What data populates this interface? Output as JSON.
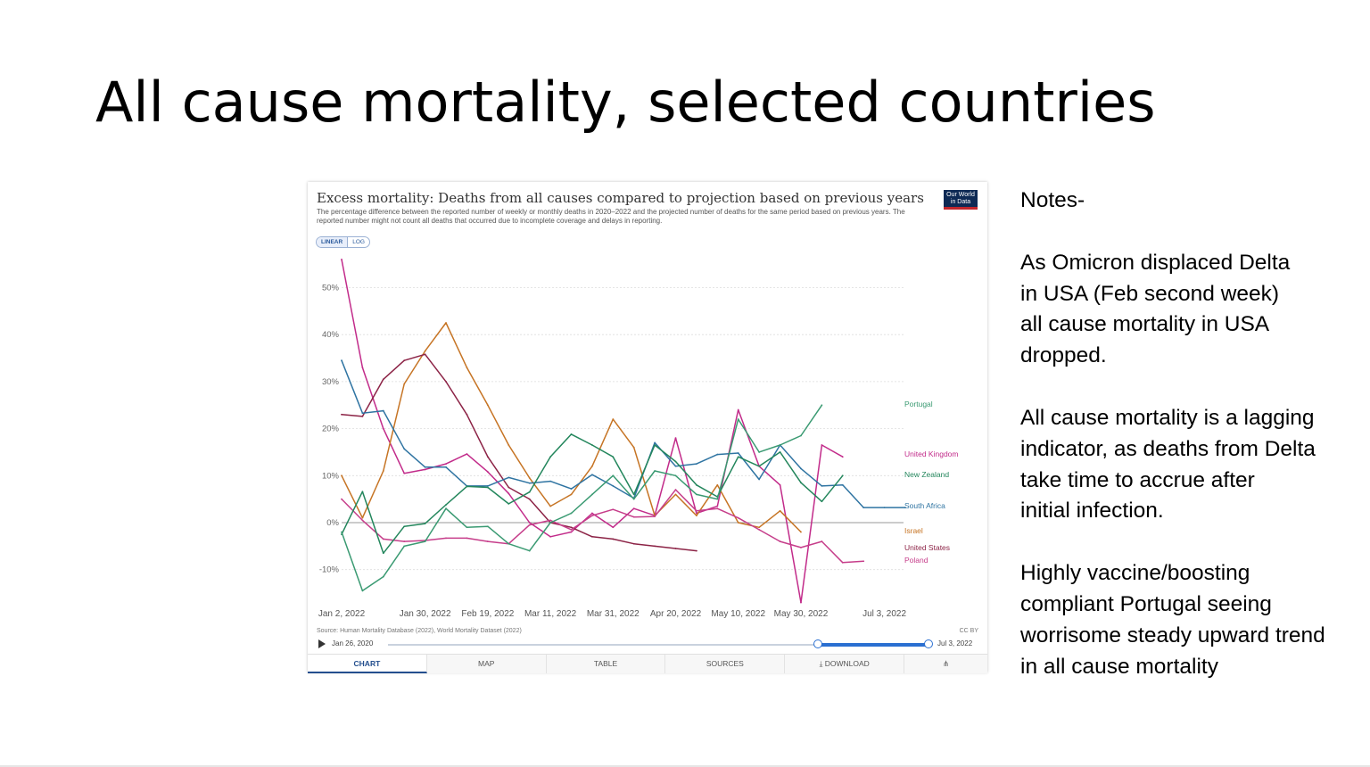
{
  "slide": {
    "title": "All cause mortality, selected countries"
  },
  "notes": {
    "heading": "Notes-",
    "paragraphs": [
      "As Omicron displaced Delta\nin USA (Feb second week)\nall cause mortality in USA\ndropped.",
      "All cause mortality is a lagging\nindicator, as deaths from Delta\ntake time to accrue after\ninitial infection.",
      "Highly vaccine/boosting\ncompliant Portugal seeing\nworrisome steady upward trend\nin all cause mortality"
    ]
  },
  "widget": {
    "logo_text": "Our World in Data",
    "scale_linear": "LINEAR",
    "scale_log": "LOG",
    "source": "Source: Human Mortality Database (2022), World Mortality Dataset (2022)",
    "license": "CC BY",
    "timeline_start": "Jan 26, 2020",
    "timeline_end": "Jul 3, 2022",
    "tabs": [
      "CHART",
      "MAP",
      "TABLE",
      "SOURCES",
      "DOWNLOAD",
      "⋔"
    ]
  },
  "chart_data": {
    "type": "line",
    "title": "Excess mortality: Deaths from all causes compared to projection based on previous years",
    "subtitle": "The percentage difference between the reported number of weekly or monthly deaths in 2020–2022 and the projected number of deaths for the same period based on previous years. The reported number might not count all deaths that occurred due to incomplete coverage and delays in reporting.",
    "xlabel": "",
    "ylabel": "",
    "ylim": [
      -15,
      55
    ],
    "yticks": [
      -10,
      0,
      10,
      20,
      30,
      40,
      50
    ],
    "ytick_labels": [
      "-10%",
      "0%",
      "10%",
      "20%",
      "30%",
      "40%",
      "50%"
    ],
    "grid": true,
    "x_count": 28,
    "x_tick_indices": [
      0,
      4,
      7,
      10,
      13,
      16,
      19,
      22,
      26
    ],
    "x_tick_labels": [
      "Jan 2, 2022",
      "Jan 30, 2022",
      "Feb 19, 2022",
      "Mar 11, 2022",
      "Mar 31, 2022",
      "Apr 20, 2022",
      "May 10, 2022",
      "May 30, 2022",
      "Jul 3, 2022"
    ],
    "legend_position": "right (end-of-line labels)",
    "series": [
      {
        "name": "United Kingdom",
        "color": "#c22b8a",
        "values": [
          56,
          33,
          20,
          10.5,
          11.3,
          12.5,
          14.6,
          10.8,
          6.2,
          0,
          -3,
          -2,
          2,
          -1,
          3,
          1.5,
          18,
          2,
          3.5,
          24,
          12,
          8,
          -17,
          16.5,
          14
        ]
      },
      {
        "name": "Israel",
        "color": "#c67424",
        "values": [
          10,
          1,
          11,
          29.5,
          36.5,
          42.5,
          33,
          25,
          16.5,
          9.5,
          3.5,
          6,
          12,
          22,
          16,
          1.5,
          6,
          1.5,
          8,
          0,
          -1,
          2.5,
          -2
        ]
      },
      {
        "name": "United States",
        "color": "#8c2346",
        "values": [
          23,
          22.6,
          30.5,
          34.5,
          35.8,
          30,
          23,
          14,
          7.5,
          5,
          0,
          -1,
          -3,
          -3.5,
          -4.5,
          -5,
          -5.5,
          -6
        ]
      },
      {
        "name": "Poland",
        "color": "#c63d8a",
        "values": [
          5,
          0.5,
          -3.5,
          -4,
          -3.8,
          -3.3,
          -3.3,
          -4,
          -4.5,
          -0.5,
          0.5,
          -1.5,
          1.5,
          2.8,
          1.2,
          1.3,
          7,
          2.5,
          3,
          1,
          -1.5,
          -4,
          -5.3,
          -4,
          -8.5,
          -8.2
        ]
      },
      {
        "name": "South Africa",
        "color": "#2f74a2",
        "values": [
          34.5,
          23.3,
          23.8,
          15.7,
          11.8,
          11.8,
          7.8,
          7.8,
          9.6,
          8.4,
          8.8,
          7.2,
          10.2,
          7.8,
          5.2,
          17,
          12,
          12.5,
          14.5,
          14.8,
          9.2,
          16.5,
          11.5,
          7.8,
          8,
          3.2,
          3.2,
          3.2
        ]
      },
      {
        "name": "New Zealand",
        "color": "#23865c",
        "values": [
          -2.5,
          6.6,
          -6.5,
          -0.8,
          -0.2,
          3.8,
          7.7,
          7.5,
          4,
          6.5,
          14,
          18.8,
          16.5,
          14,
          6,
          16.5,
          13,
          8,
          5.5,
          14,
          12,
          15,
          8.5,
          4.5,
          10
        ]
      },
      {
        "name": "Portugal",
        "color": "#3a9a72",
        "values": [
          -2,
          -14.5,
          -11.5,
          -5,
          -4,
          3,
          -1,
          -0.8,
          -4.5,
          -6,
          0,
          2,
          6,
          10,
          5,
          11,
          10,
          6,
          5,
          22,
          15,
          16.5,
          18.5,
          25
        ]
      }
    ]
  }
}
